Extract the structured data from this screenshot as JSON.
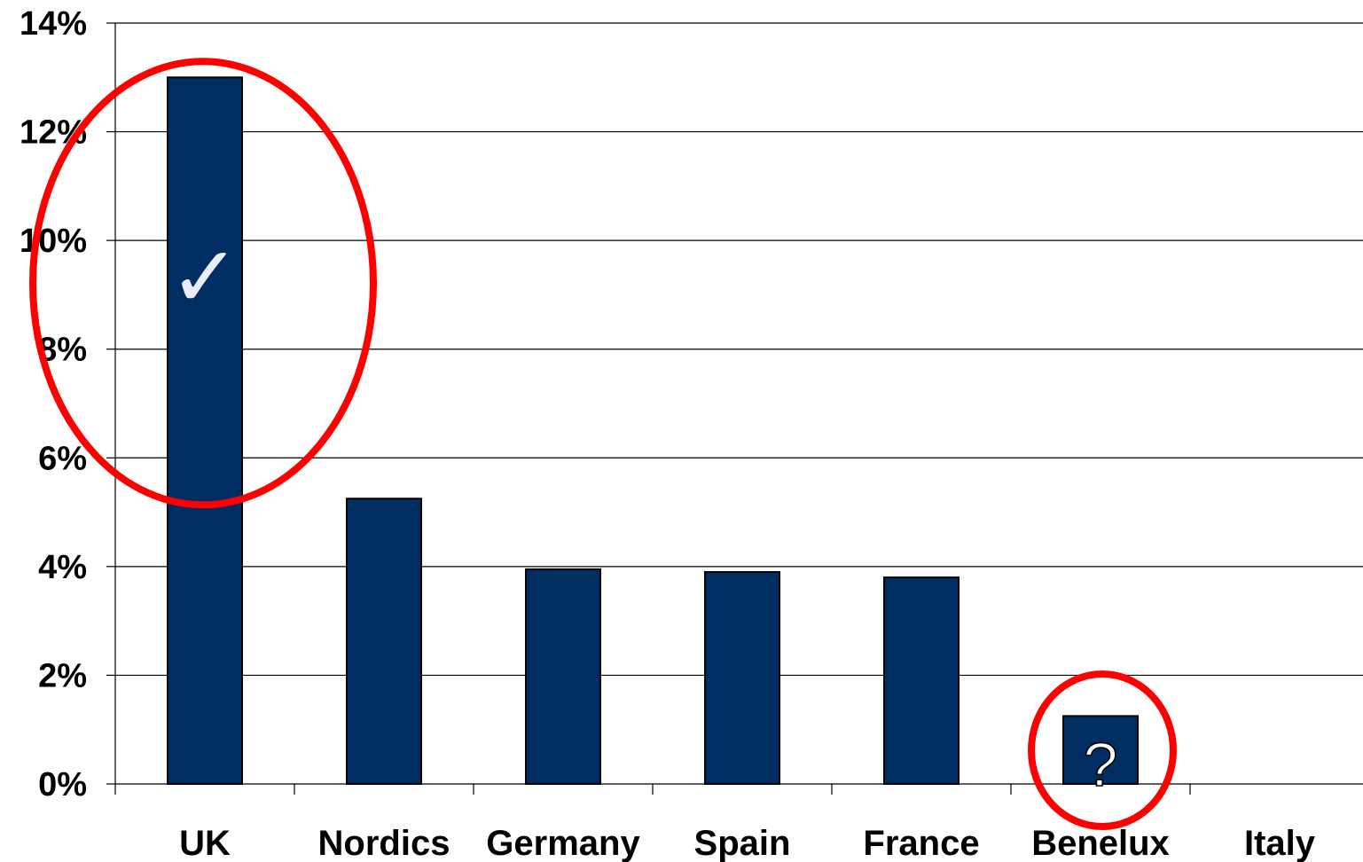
{
  "chart_data": {
    "type": "bar",
    "title": "",
    "xlabel": "",
    "ylabel": "",
    "categories": [
      "UK",
      "Nordics",
      "Germany",
      "Spain",
      "France",
      "Benelux",
      "Italy"
    ],
    "values": [
      13.0,
      5.25,
      3.95,
      3.9,
      3.8,
      1.25,
      0
    ],
    "ylim": [
      0,
      14
    ],
    "y_ticks": [
      0,
      2,
      4,
      6,
      8,
      10,
      12,
      14
    ],
    "y_tick_labels": [
      "0%",
      "2%",
      "4%",
      "6%",
      "8%",
      "10%",
      "12%",
      "14%"
    ],
    "grid": true,
    "bar_color": "#002D62",
    "annotations": [
      {
        "category": "UK",
        "mark": "✓",
        "marker": "checkmark-icon",
        "highlight": "red-ellipse"
      },
      {
        "category": "Benelux",
        "mark": "?",
        "marker": "question-mark-icon",
        "highlight": "red-ellipse"
      }
    ],
    "highlight_color": "#FF0000"
  }
}
